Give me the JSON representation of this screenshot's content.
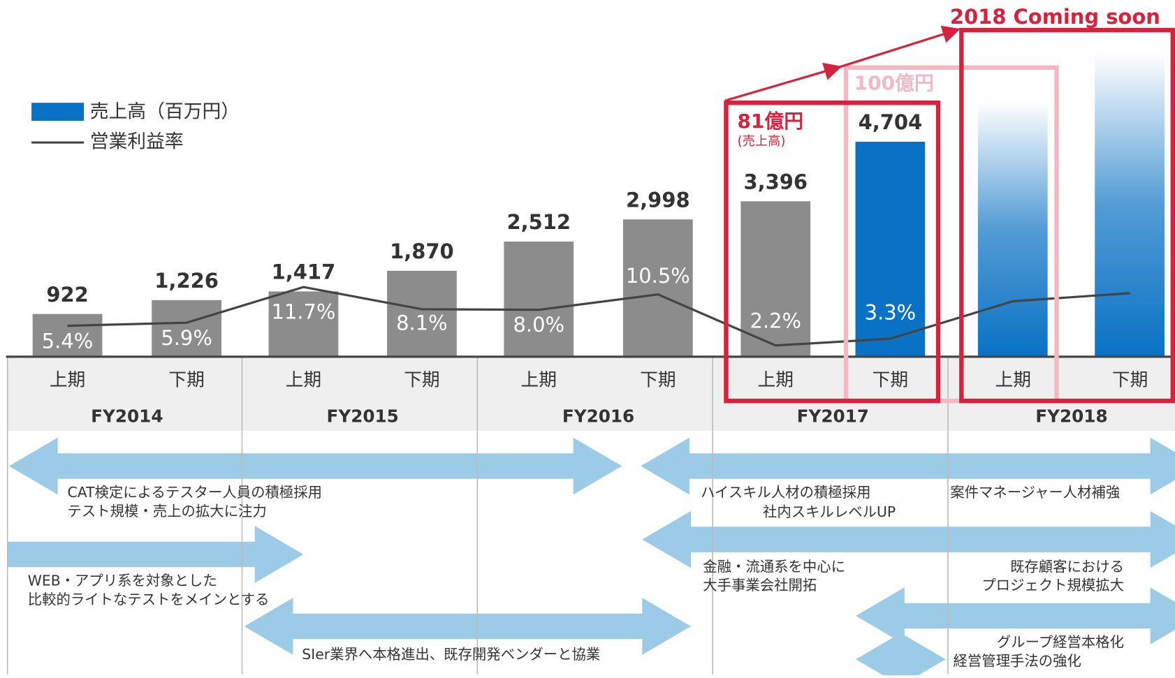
{
  "chart_data": {
    "type": "bar",
    "legend": {
      "bars": "売上高（百万円）",
      "line": "営業利益率"
    },
    "categories": [
      "上期",
      "下期",
      "上期",
      "下期",
      "上期",
      "下期",
      "上期",
      "下期",
      "上期",
      "下期"
    ],
    "groups": [
      "FY2014",
      "FY2015",
      "FY2016",
      "FY2017",
      "FY2018"
    ],
    "series": [
      {
        "name": "売上高（百万円）",
        "type": "bar",
        "colors": [
          "#8c8c8c",
          "#8c8c8c",
          "#8c8c8c",
          "#8c8c8c",
          "#8c8c8c",
          "#8c8c8c",
          "#8c8c8c",
          "#0a72c4",
          null,
          null
        ],
        "values": [
          922,
          1226,
          1417,
          1870,
          2512,
          2998,
          3396,
          4704,
          null,
          null
        ],
        "value_labels": [
          "922",
          "1,226",
          "1,417",
          "1,870",
          "2,512",
          "2,998",
          "3,396",
          "4,704",
          null,
          null
        ]
      },
      {
        "name": "営業利益率",
        "type": "line",
        "color": "#444444",
        "values": [
          5.4,
          5.9,
          11.7,
          8.1,
          8.0,
          10.5,
          2.2,
          3.3,
          9.4,
          10.7
        ],
        "value_labels": [
          "5.4%",
          "5.9%",
          "11.7%",
          "8.1%",
          "8.0%",
          "10.5%",
          "2.2%",
          "3.3%",
          null,
          null
        ]
      }
    ],
    "annotations": {
      "coming": "2018 Coming soon",
      "target": "100億円",
      "fy2017": "81億円",
      "fy2017_sub": "(売上高)"
    },
    "initiatives": [
      [
        "CAT検定によるテスター人員の積極採用",
        "テスト規模・売上の拡大に注力"
      ],
      [
        "ハイスキル人材の積極採用",
        "社内スキルレベルUP"
      ],
      [
        "案件マネージャー人材補強"
      ],
      [
        "WEB・アプリ系を対象とした",
        "比較的ライトなテストをメインとする"
      ],
      [
        "金融・流通系を中心に",
        "大手事業会社開拓"
      ],
      [
        "既存顧客における",
        "プロジェクト規模拡大"
      ],
      [
        "SIer業界へ本格進出、既存開発ベンダーと協業"
      ],
      [
        "グループ経営本格化",
        "経営管理手法の強化"
      ]
    ]
  }
}
